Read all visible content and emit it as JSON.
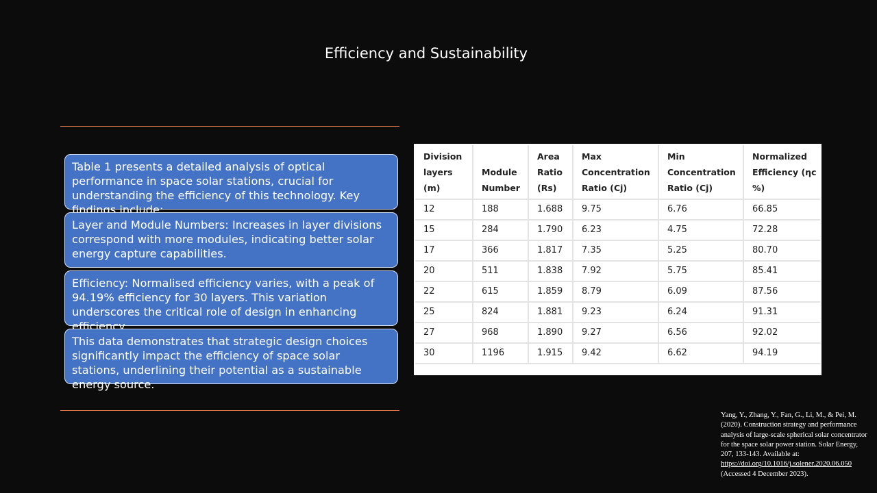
{
  "slide": {
    "title": "Efficiency and Sustainability"
  },
  "boxes": [
    "Table 1 presents a detailed analysis of optical performance in space solar stations, crucial for understanding the efficiency of this technology. Key findings include:",
    "Layer and Module Numbers: Increases in layer divisions correspond with more modules, indicating better solar energy capture capabilities.",
    "Efficiency: Normalised efficiency varies, with a peak of 94.19% efficiency for 30 layers. This variation underscores the critical role of design in enhancing efficiency.",
    "This data demonstrates that strategic design choices significantly impact the efficiency of space solar stations, underlining their potential as a sustainable energy source."
  ],
  "table": {
    "headers": [
      "Division layers (m)",
      "Module Number",
      "Area Ratio (Rs)",
      "Max Concentration Ratio (Cj)",
      "Min Concentration Ratio (Cj)",
      "Normalized Efficiency (ηc %)"
    ],
    "rows": [
      [
        "12",
        "188",
        "1.688",
        "9.75",
        "6.76",
        "66.85"
      ],
      [
        "15",
        "284",
        "1.790",
        "6.23",
        "4.75",
        "72.28"
      ],
      [
        "17",
        "366",
        "1.817",
        "7.35",
        "5.25",
        "80.70"
      ],
      [
        "20",
        "511",
        "1.838",
        "7.92",
        "5.75",
        "85.41"
      ],
      [
        "22",
        "615",
        "1.859",
        "8.79",
        "6.09",
        "87.56"
      ],
      [
        "25",
        "824",
        "1.881",
        "9.23",
        "6.24",
        "91.31"
      ],
      [
        "27",
        "968",
        "1.890",
        "9.27",
        "6.56",
        "92.02"
      ],
      [
        "30",
        "1196",
        "1.915",
        "9.42",
        "6.62",
        "94.19"
      ]
    ]
  },
  "reference": {
    "text": "Yang, Y., Zhang, Y., Fan, G., Li, M., & Pei, M. (2020). Construction strategy and performance analysis of large-scale spherical solar concentrator for the space solar power station. Solar Energy, 207, 133-143. Available at:",
    "link": "https://doi.org/10.1016/j.solener.2020.06.050",
    "suffix": "(Accessed 4 December 2023)."
  },
  "colors": {
    "background": "#0c0c0c",
    "box_fill": "#4472c4",
    "rule": "#d8784a"
  }
}
